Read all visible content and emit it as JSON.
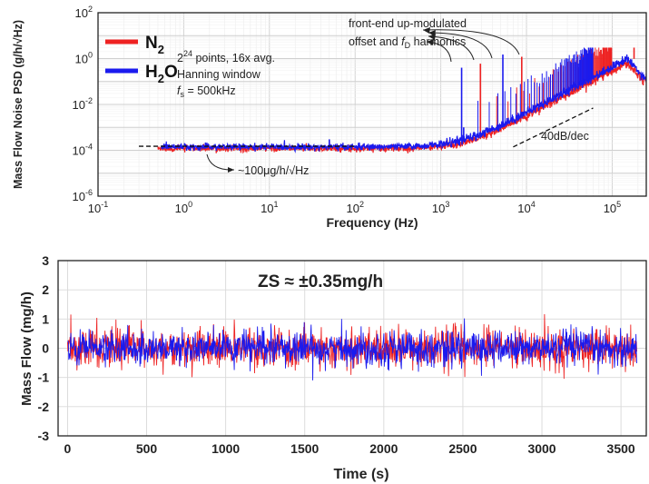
{
  "colors": {
    "n2": "#ee2222",
    "h2o": "#1a1aee",
    "grid": "#d9d9d9",
    "axis": "#222222"
  },
  "chart_data": [
    {
      "type": "line",
      "xscale": "log",
      "yscale": "log",
      "xlabel": "Frequency (Hz)",
      "ylabel": "Mass Flow Noise PSD (g/h/√Hz)",
      "xlim": [
        0.1,
        250000
      ],
      "ylim": [
        1e-06,
        100
      ],
      "grid": true,
      "legend_position": "top-left",
      "x_ticks": [
        {
          "value": 0.1,
          "base": "10",
          "exp": "-1"
        },
        {
          "value": 1,
          "base": "10",
          "exp": "0"
        },
        {
          "value": 10,
          "base": "10",
          "exp": "1"
        },
        {
          "value": 100,
          "base": "10",
          "exp": "2"
        },
        {
          "value": 1000,
          "base": "10",
          "exp": "3"
        },
        {
          "value": 10000,
          "base": "10",
          "exp": "4"
        },
        {
          "value": 100000,
          "base": "10",
          "exp": "5"
        }
      ],
      "y_ticks": [
        {
          "value": 1e-06,
          "base": "10",
          "exp": "-6"
        },
        {
          "value": 0.0001,
          "base": "10",
          "exp": "-4"
        },
        {
          "value": 0.01,
          "base": "10",
          "exp": "-2"
        },
        {
          "value": 1,
          "base": "10",
          "exp": "0"
        },
        {
          "value": 100,
          "base": "10",
          "exp": "2"
        }
      ],
      "series": [
        {
          "name_main": "N",
          "name_sub": "2",
          "name_tail": "",
          "color": "#ee2222",
          "floor": 0.00012,
          "corner_hz": 2000,
          "roll_off_peak": 2.0,
          "peaks": [
            {
              "x": 50,
              "y": 0.00025
            },
            {
              "x": 2900,
              "y": 0.6
            },
            {
              "x": 8800,
              "y": 1.2
            },
            {
              "x": 180000,
              "y": 3.0
            }
          ]
        },
        {
          "name_main": "H",
          "name_sub": "2",
          "name_tail": "O",
          "color": "#1a1aee",
          "floor": 0.00014,
          "corner_hz": 1800,
          "roll_off_peak": 1.8,
          "peaks": [
            {
              "x": 50,
              "y": 0.0003
            },
            {
              "x": 1750,
              "y": 0.4
            },
            {
              "x": 5300,
              "y": 1.5
            },
            {
              "x": 1850,
              "y": 0.001
            }
          ]
        }
      ],
      "reference_lines": [
        {
          "label": "~100μg/h/√Hz",
          "from": [
            0.3,
            0.00015
          ],
          "to": [
            100,
            0.00015
          ]
        },
        {
          "label": "40dB/dec",
          "from": [
            7000,
            0.00014
          ],
          "to": [
            60000,
            0.007
          ]
        }
      ],
      "annotations": {
        "params_line1_base": "2",
        "params_line1_exp": "24",
        "params_line1_rest": " points, 16x avg.",
        "params_line2": "Hanning window",
        "params_line3_f": "f",
        "params_line3_sub": "s",
        "params_line3_rest": " = 500kHz",
        "harmonics_line1": "front-end up-modulated",
        "harmonics_line2_pre": "offset and ",
        "harmonics_line2_f": "f",
        "harmonics_line2_sub": "D",
        "harmonics_line2_post": " harmonics",
        "floor_label": "~100μg/h/√Hz",
        "slope_label": "40dB/dec"
      }
    },
    {
      "type": "line",
      "xlabel": "Time (s)",
      "ylabel": "Mass Flow (mg/h)",
      "xlim": [
        -60,
        3660
      ],
      "ylim": [
        -3,
        3
      ],
      "grid": true,
      "x_ticks": [
        0,
        500,
        1000,
        1500,
        2000,
        2500,
        3000,
        3500
      ],
      "y_ticks": [
        -3,
        -2,
        -1,
        0,
        1,
        2,
        3
      ],
      "series": [
        {
          "name": "N2",
          "color": "#ee2222",
          "sigma": 0.33,
          "range": [
            0,
            3600
          ]
        },
        {
          "name": "H2O",
          "color": "#1a1aee",
          "sigma": 0.3,
          "range": [
            0,
            3600
          ]
        }
      ],
      "annotation": "ZS ≈ ±0.35mg/h"
    }
  ]
}
